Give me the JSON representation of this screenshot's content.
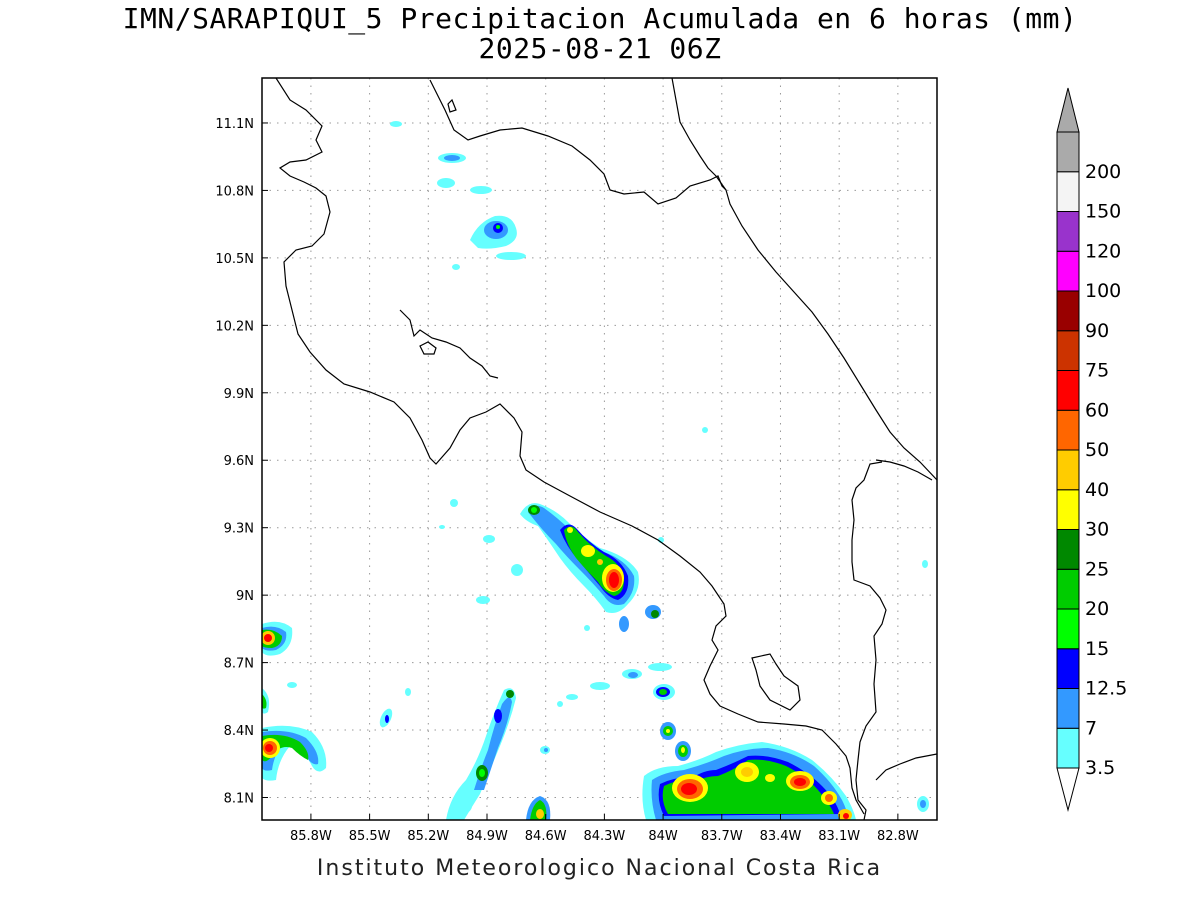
{
  "title": {
    "line1": "IMN/SARAPIQUI_5 Precipitacion Acumulada en 6 horas (mm)",
    "line2": "2025-08-21 06Z"
  },
  "footer": "Instituto Meteorologico Nacional Costa Rica",
  "map": {
    "lon_range": [
      -86.05,
      -82.6
    ],
    "lat_range": [
      8.0,
      11.3
    ],
    "grid": true,
    "lon_ticks": [
      {
        "v": -85.8,
        "label": "85.8W"
      },
      {
        "v": -85.5,
        "label": "85.5W"
      },
      {
        "v": -85.2,
        "label": "85.2W"
      },
      {
        "v": -84.9,
        "label": "84.9W"
      },
      {
        "v": -84.6,
        "label": "84.6W"
      },
      {
        "v": -84.3,
        "label": "84.3W"
      },
      {
        "v": -84.0,
        "label": "84W"
      },
      {
        "v": -83.7,
        "label": "83.7W"
      },
      {
        "v": -83.4,
        "label": "83.4W"
      },
      {
        "v": -83.1,
        "label": "83.1W"
      },
      {
        "v": -82.8,
        "label": "82.8W"
      }
    ],
    "lat_ticks": [
      {
        "v": 8.1,
        "label": "8.1N"
      },
      {
        "v": 8.4,
        "label": "8.4N"
      },
      {
        "v": 8.7,
        "label": "8.7N"
      },
      {
        "v": 9.0,
        "label": "9N"
      },
      {
        "v": 9.3,
        "label": "9.3N"
      },
      {
        "v": 9.6,
        "label": "9.6N"
      },
      {
        "v": 9.9,
        "label": "9.9N"
      },
      {
        "v": 10.2,
        "label": "10.2N"
      },
      {
        "v": 10.5,
        "label": "10.5N"
      },
      {
        "v": 10.8,
        "label": "10.8N"
      },
      {
        "v": 11.1,
        "label": "11.1N"
      }
    ]
  },
  "colorbar": {
    "levels": [
      {
        "label": "3.5",
        "color": "#66ffff"
      },
      {
        "label": "7",
        "color": "#3399ff"
      },
      {
        "label": "12.5",
        "color": "#0000ff"
      },
      {
        "label": "15",
        "color": "#00ff00"
      },
      {
        "label": "20",
        "color": "#00cc00"
      },
      {
        "label": "25",
        "color": "#008800"
      },
      {
        "label": "30",
        "color": "#ffff00"
      },
      {
        "label": "40",
        "color": "#ffcc00"
      },
      {
        "label": "50",
        "color": "#ff6600"
      },
      {
        "label": "60",
        "color": "#ff0000"
      },
      {
        "label": "75",
        "color": "#cc3300"
      },
      {
        "label": "90",
        "color": "#990000"
      },
      {
        "label": "100",
        "color": "#ff00ff"
      },
      {
        "label": "120",
        "color": "#9933cc"
      },
      {
        "label": "150",
        "color": "#f4f4f4"
      },
      {
        "label": "200",
        "color": "#aaaaaa"
      }
    ],
    "below_color": "#ffffff",
    "above_color": "#aaaaaa"
  }
}
